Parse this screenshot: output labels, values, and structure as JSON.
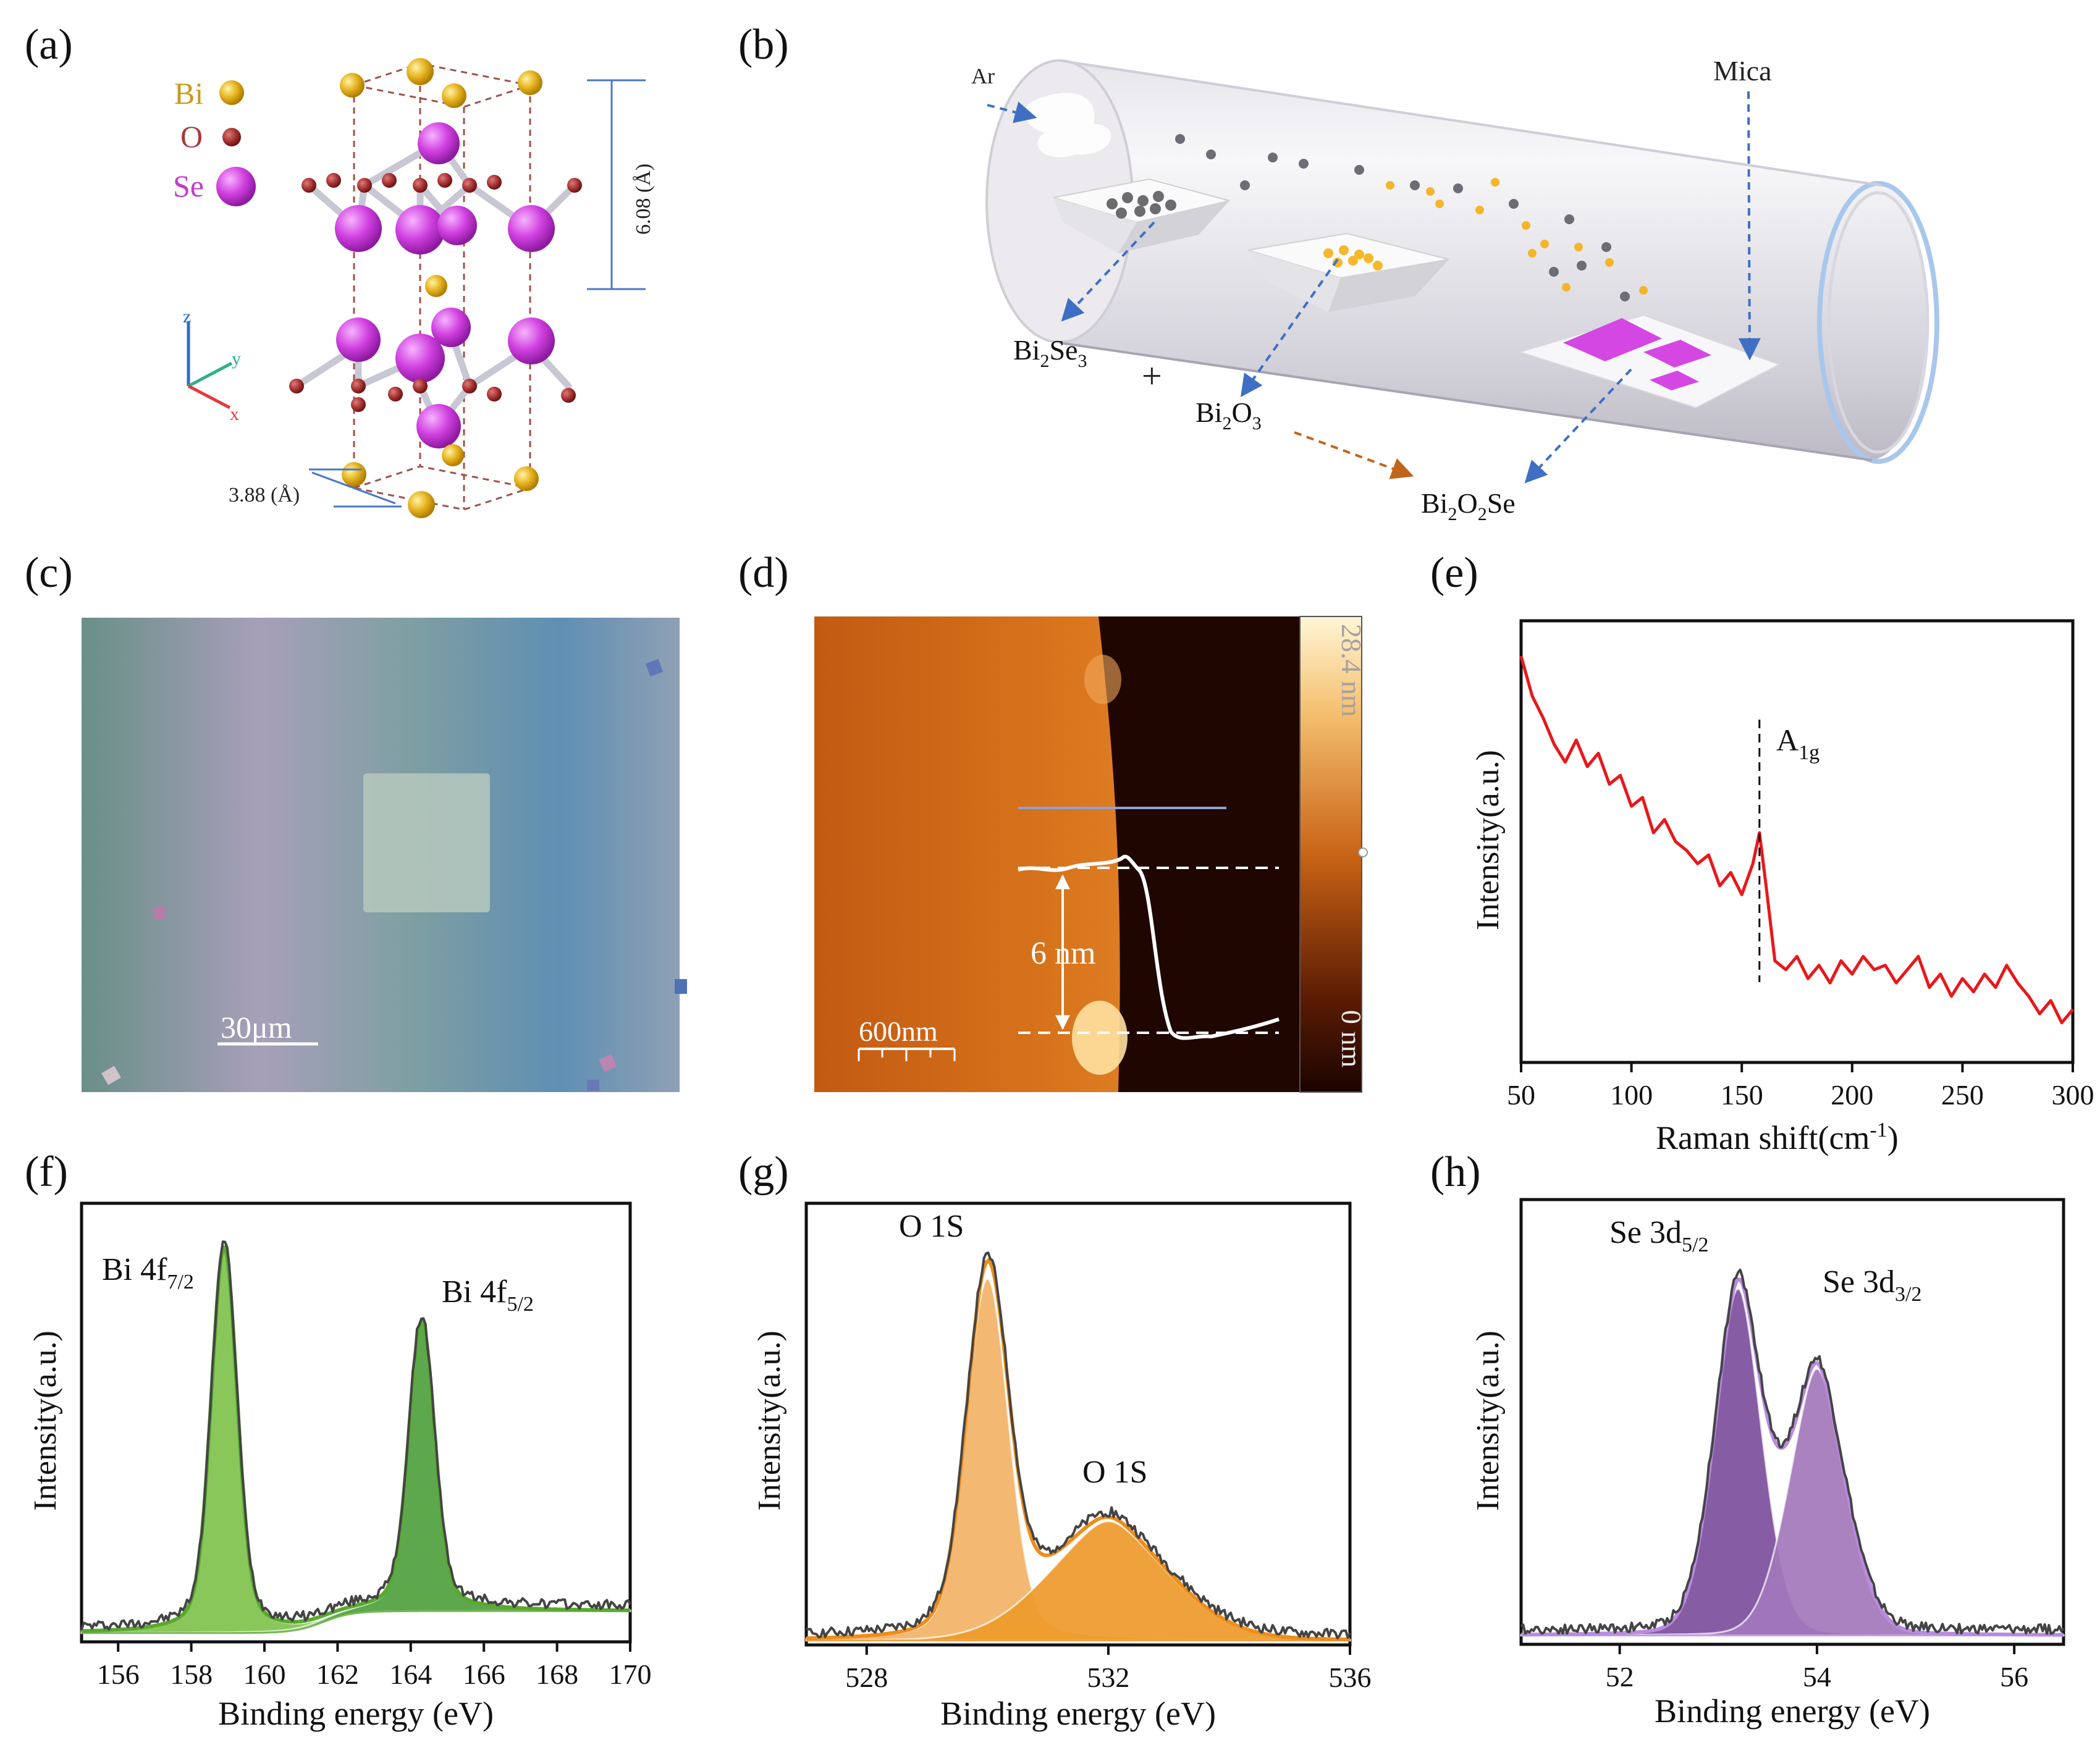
{
  "panels": {
    "a": {
      "letter": "(a)",
      "legend": [
        "Bi",
        "O",
        "Se"
      ],
      "axes": [
        "z",
        "y",
        "x"
      ],
      "dim_c": "6.08 (Å)",
      "dim_a": "3.88 (Å)",
      "colors": {
        "Bi": "#e3b022",
        "O": "#9e2b2b",
        "Se": "#c93ad6",
        "cell": "#a0524a"
      }
    },
    "b": {
      "letter": "(b)",
      "ar": "Ar",
      "mica": "Mica",
      "plus": "+",
      "precursor1": "Bi2Se3",
      "precursor2": "Bi2O3",
      "product": "Bi2O2Se"
    },
    "c": {
      "letter": "(c)",
      "scale": "30μm"
    },
    "d": {
      "letter": "(d)",
      "scale": "600nm",
      "step": "6 nm",
      "cmax": "28.4 nm",
      "cmin": "0 nm"
    },
    "e": {
      "letter": "(e)",
      "peak": "A1g"
    },
    "f": {
      "letter": "(f)",
      "peak1": "Bi 4f7/2",
      "peak2": "Bi 4f5/2"
    },
    "g": {
      "letter": "(g)",
      "peak1": "O 1S",
      "peak2": "O 1S"
    },
    "h": {
      "letter": "(h)",
      "peak1": "Se 3d5/2",
      "peak2": "Se 3d3/2"
    }
  },
  "chart_data": [
    {
      "id": "e",
      "type": "line",
      "xlabel": "Raman shift(cm-1)",
      "ylabel": "Intensity(a.u.)",
      "xlim": [
        50,
        300
      ],
      "ylim": [
        0,
        100
      ],
      "xticks": [
        50,
        100,
        150,
        200,
        250,
        300
      ],
      "series": [
        {
          "name": "Raman",
          "color": "#e8181b",
          "x": [
            50,
            55,
            60,
            65,
            70,
            75,
            80,
            85,
            90,
            95,
            100,
            105,
            110,
            115,
            120,
            125,
            130,
            135,
            140,
            145,
            150,
            155,
            158,
            161,
            165,
            170,
            175,
            180,
            185,
            190,
            195,
            200,
            205,
            210,
            215,
            220,
            225,
            230,
            235,
            240,
            245,
            250,
            255,
            260,
            265,
            270,
            275,
            280,
            285,
            290,
            295,
            300
          ],
          "y": [
            92,
            83,
            78,
            72,
            68,
            73,
            67,
            70,
            63,
            65,
            58,
            60,
            52,
            55,
            50,
            48,
            45,
            47,
            40,
            43,
            38,
            45,
            52,
            40,
            23,
            21,
            24,
            19,
            22,
            18,
            23,
            20,
            24,
            21,
            22,
            18,
            21,
            24,
            17,
            20,
            15,
            19,
            16,
            20,
            17,
            22,
            18,
            15,
            11,
            14,
            9,
            12
          ]
        }
      ],
      "annotations": [
        {
          "text": "A1g",
          "x": 158
        }
      ]
    },
    {
      "id": "f",
      "type": "line",
      "xlabel": "Binding energy (eV)",
      "ylabel": "Intensity(a.u.)",
      "xlim": [
        155,
        170
      ],
      "ylim": [
        0,
        100
      ],
      "xticks": [
        156,
        158,
        160,
        162,
        164,
        166,
        168,
        170
      ],
      "peaks": [
        {
          "name": "Bi 4f7/2",
          "center": 158.9,
          "height": 88,
          "sigma": 0.34,
          "gamma": 0.3,
          "fill": "#7fc24d"
        },
        {
          "name": "Bi 4f5/2",
          "center": 164.3,
          "height": 66,
          "sigma": 0.34,
          "gamma": 0.3,
          "fill": "#4fa13d"
        }
      ],
      "background": {
        "start": 2,
        "end": 7,
        "center": 161.6
      },
      "envelope_color": "#59a92f",
      "raw_color": "#444444"
    },
    {
      "id": "g",
      "type": "line",
      "xlabel": "Binding energy (eV)",
      "ylabel": "Intensity(a.u.)",
      "xlim": [
        527,
        536
      ],
      "ylim": [
        0,
        100
      ],
      "xticks": [
        528,
        532,
        536
      ],
      "peaks": [
        {
          "name": "O 1S",
          "center": 530.0,
          "height": 82,
          "sigma": 0.34,
          "gamma": 0.25,
          "fill": "#f2b265"
        },
        {
          "name": "O 1S",
          "center": 532.0,
          "height": 27,
          "sigma": 1.05,
          "gamma": 0.3,
          "fill": "#ee9a2a"
        }
      ],
      "background": {
        "start": 1,
        "end": 1,
        "center": 531
      },
      "envelope_color": "#ee8d1a",
      "raw_color": "#444444"
    },
    {
      "id": "h",
      "type": "line",
      "xlabel": "Binding energy (eV)",
      "ylabel": "Intensity(a.u.)",
      "xlim": [
        51,
        56.5
      ],
      "ylim": [
        0,
        100
      ],
      "xticks": [
        52,
        54,
        56
      ],
      "peaks": [
        {
          "name": "Se 3d5/2",
          "center": 53.2,
          "height": 78,
          "sigma": 0.25,
          "gamma": 0.1,
          "fill": "#7c4e9d"
        },
        {
          "name": "Se 3d3/2",
          "center": 54.0,
          "height": 60,
          "sigma": 0.3,
          "gamma": 0.1,
          "fill": "#a377bb"
        }
      ],
      "background": {
        "start": 2,
        "end": 2,
        "center": 53.6
      },
      "envelope_color": "#b98be0",
      "raw_color": "#444444"
    }
  ]
}
